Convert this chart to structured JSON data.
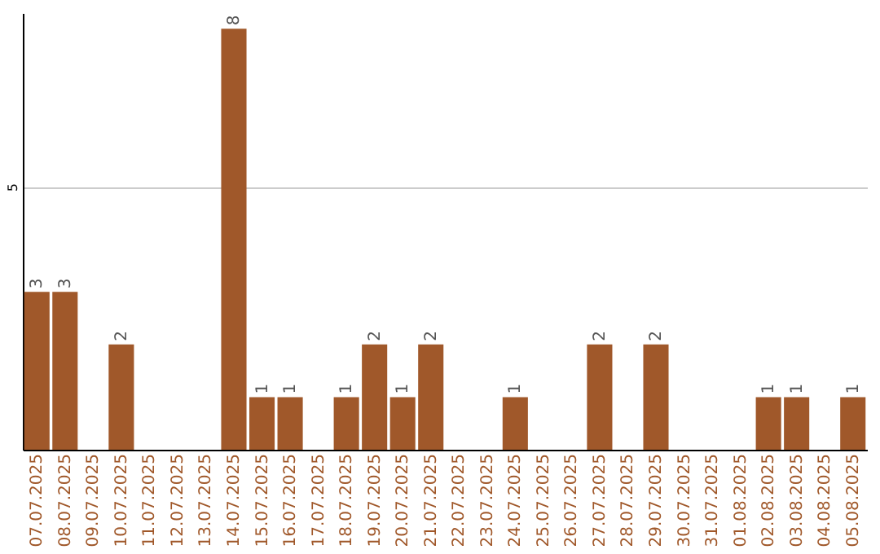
{
  "chart_data": {
    "type": "bar",
    "categories": [
      "07.07.2025",
      "08.07.2025",
      "09.07.2025",
      "10.07.2025",
      "11.07.2025",
      "12.07.2025",
      "13.07.2025",
      "14.07.2025",
      "15.07.2025",
      "16.07.2025",
      "17.07.2025",
      "18.07.2025",
      "19.07.2025",
      "20.07.2025",
      "21.07.2025",
      "22.07.2025",
      "23.07.2025",
      "24.07.2025",
      "25.07.2025",
      "26.07.2025",
      "27.07.2025",
      "28.07.2025",
      "29.07.2025",
      "30.07.2025",
      "31.07.2025",
      "01.08.2025",
      "02.08.2025",
      "03.08.2025",
      "04.08.2025",
      "05.08.2025"
    ],
    "values": [
      3,
      3,
      0,
      2,
      0,
      0,
      0,
      8,
      1,
      1,
      0,
      1,
      2,
      1,
      2,
      0,
      0,
      1,
      0,
      0,
      2,
      0,
      2,
      0,
      0,
      0,
      1,
      1,
      0,
      1
    ],
    "value_labels": [
      "3",
      "3",
      null,
      "2",
      null,
      null,
      null,
      "8",
      "1",
      "1",
      null,
      "1",
      "2",
      "1",
      "2",
      null,
      null,
      "1",
      null,
      null,
      "2",
      null,
      "2",
      null,
      null,
      null,
      "1",
      "1",
      null,
      "1"
    ],
    "color": "#a0582a",
    "ylim": [
      0,
      8.3
    ],
    "yticks": [
      5
    ],
    "grid": "y"
  }
}
